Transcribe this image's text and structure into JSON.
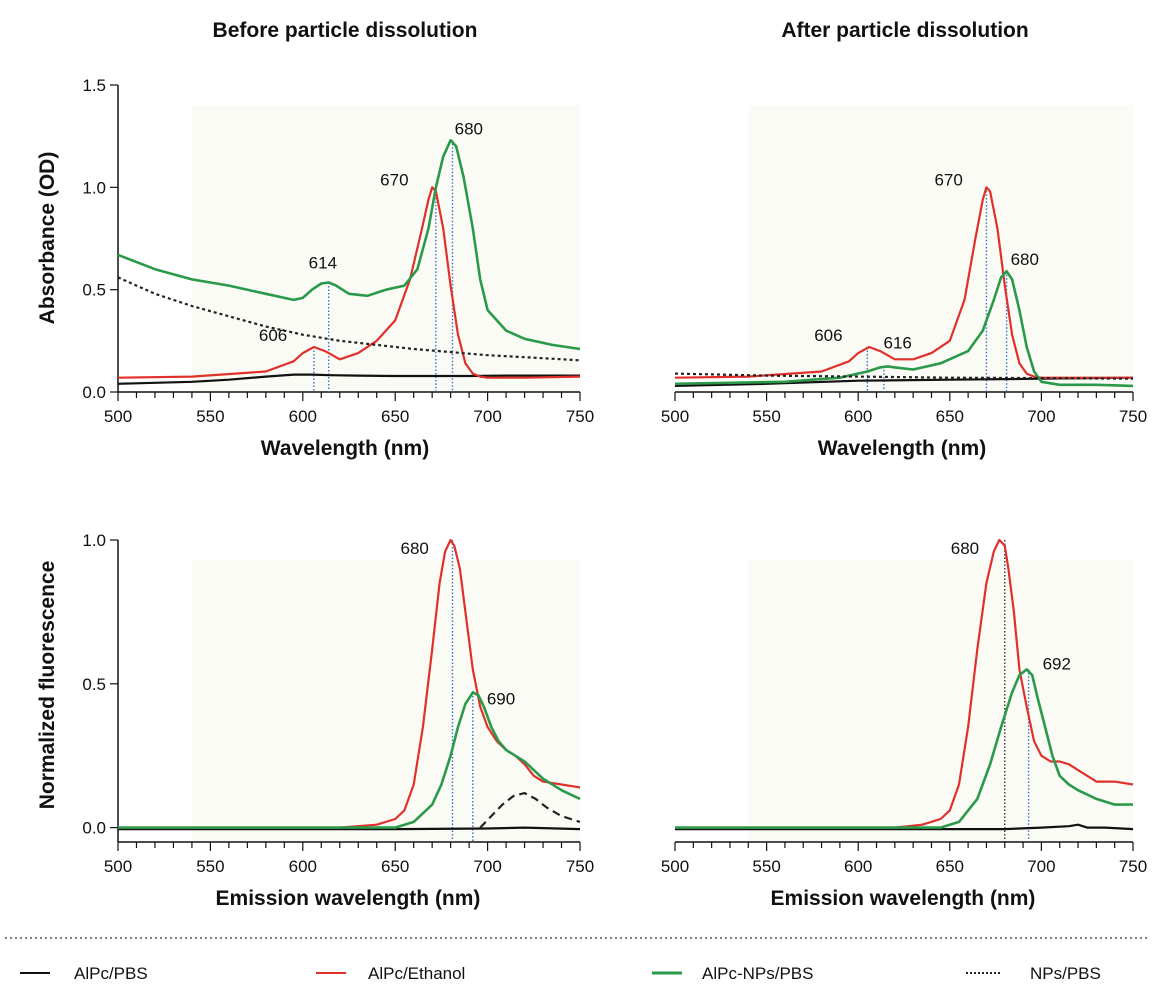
{
  "colors": {
    "AlPc/PBS": "#111111",
    "AlPc/Ethanol": "#e0302c",
    "AlPc-NPs/PBS": "#2a9a4a",
    "NPs/PBS": "#222222",
    "marker_blue": "#3a6fc8",
    "marker_dark": "#333333"
  },
  "legend": [
    {
      "label": "AlPc/PBS",
      "style": "solid-black"
    },
    {
      "label": "AlPc/Ethanol",
      "style": "solid-red"
    },
    {
      "label": "AlPc-NPs/PBS",
      "style": "solid-green"
    },
    {
      "label": "NPs/PBS",
      "style": "dotted-black"
    }
  ],
  "chart_data": [
    {
      "id": "abs-before",
      "type": "line",
      "title": "Before particle dissolution",
      "xlabel": "Wavelength (nm)",
      "ylabel": "Absorbance (OD)",
      "xlim": [
        500,
        750
      ],
      "ylim": [
        0,
        1.5
      ],
      "xticks": [
        "500",
        "550",
        "600",
        "650",
        "700",
        "750"
      ],
      "yticks": [
        "0.0",
        "0.5",
        "1.0",
        "1.5"
      ],
      "series": [
        {
          "name": "AlPc/PBS",
          "dash": "solid",
          "x": [
            500,
            520,
            540,
            560,
            580,
            595,
            605,
            615,
            630,
            650,
            670,
            690,
            710,
            730,
            750
          ],
          "y": [
            0.04,
            0.045,
            0.05,
            0.06,
            0.075,
            0.085,
            0.085,
            0.082,
            0.08,
            0.078,
            0.078,
            0.078,
            0.08,
            0.08,
            0.08
          ]
        },
        {
          "name": "AlPc/Ethanol",
          "dash": "solid",
          "x": [
            500,
            540,
            580,
            595,
            600,
            606,
            612,
            620,
            630,
            640,
            650,
            658,
            664,
            668,
            670,
            672,
            676,
            680,
            684,
            688,
            692,
            696,
            700,
            710,
            720,
            750
          ],
          "y": [
            0.07,
            0.075,
            0.1,
            0.15,
            0.19,
            0.22,
            0.2,
            0.16,
            0.19,
            0.25,
            0.35,
            0.55,
            0.78,
            0.94,
            1.0,
            0.98,
            0.8,
            0.52,
            0.28,
            0.14,
            0.09,
            0.075,
            0.07,
            0.07,
            0.07,
            0.075
          ]
        },
        {
          "name": "AlPc-NPs/PBS",
          "dash": "solid",
          "x": [
            500,
            520,
            540,
            560,
            580,
            595,
            600,
            605,
            610,
            614,
            618,
            625,
            635,
            645,
            655,
            662,
            668,
            672,
            676,
            680,
            683,
            687,
            692,
            696,
            700,
            710,
            720,
            735,
            750
          ],
          "y": [
            0.67,
            0.6,
            0.55,
            0.52,
            0.48,
            0.45,
            0.46,
            0.5,
            0.53,
            0.535,
            0.52,
            0.48,
            0.47,
            0.5,
            0.52,
            0.6,
            0.8,
            1.0,
            1.15,
            1.23,
            1.2,
            1.05,
            0.8,
            0.55,
            0.4,
            0.3,
            0.26,
            0.23,
            0.21
          ]
        },
        {
          "name": "NPs/PBS",
          "dash": "dotted",
          "x": [
            500,
            520,
            540,
            560,
            580,
            600,
            620,
            640,
            660,
            680,
            700,
            720,
            750
          ],
          "y": [
            0.56,
            0.48,
            0.42,
            0.37,
            0.32,
            0.28,
            0.25,
            0.23,
            0.21,
            0.195,
            0.18,
            0.17,
            0.155
          ]
        }
      ],
      "annotations": [
        {
          "text": "606",
          "x": 606,
          "y": 0.22,
          "dx": -55,
          "dy": -6
        },
        {
          "text": "614",
          "x": 614,
          "y": 0.535,
          "dx": -20,
          "dy": -14
        },
        {
          "text": "670",
          "x": 670,
          "y": 1.0,
          "dx": -52,
          "dy": -2
        },
        {
          "text": "680",
          "x": 680,
          "y": 1.23,
          "dx": 4,
          "dy": -6
        }
      ],
      "markers": [
        {
          "x": 606,
          "y": 0.22
        },
        {
          "x": 614,
          "y": 0.535
        },
        {
          "x": 672,
          "y": 1.0
        },
        {
          "x": 681,
          "y": 1.23
        }
      ]
    },
    {
      "id": "abs-after",
      "type": "line",
      "title": "After particle dissolution",
      "xlabel": "Wavelength (nm)",
      "ylabel": "",
      "xlim": [
        500,
        750
      ],
      "ylim": [
        0,
        1.5
      ],
      "xticks": [
        "500",
        "550",
        "600",
        "650",
        "700",
        "750"
      ],
      "yticks": [],
      "series": [
        {
          "name": "AlPc/PBS",
          "dash": "solid",
          "x": [
            500,
            550,
            600,
            650,
            700,
            750
          ],
          "y": [
            0.03,
            0.04,
            0.055,
            0.06,
            0.065,
            0.07
          ]
        },
        {
          "name": "AlPc/Ethanol",
          "dash": "solid",
          "x": [
            500,
            540,
            580,
            595,
            600,
            606,
            612,
            620,
            630,
            640,
            650,
            658,
            664,
            668,
            670,
            672,
            676,
            680,
            684,
            688,
            692,
            696,
            700,
            710,
            750
          ],
          "y": [
            0.07,
            0.075,
            0.1,
            0.15,
            0.19,
            0.22,
            0.2,
            0.16,
            0.16,
            0.19,
            0.25,
            0.45,
            0.75,
            0.94,
            1.0,
            0.98,
            0.8,
            0.52,
            0.28,
            0.14,
            0.09,
            0.075,
            0.07,
            0.07,
            0.07
          ]
        },
        {
          "name": "AlPc-NPs/PBS",
          "dash": "solid",
          "x": [
            500,
            560,
            590,
            605,
            612,
            616,
            620,
            630,
            645,
            660,
            668,
            674,
            678,
            681,
            684,
            688,
            692,
            696,
            700,
            710,
            730,
            750
          ],
          "y": [
            0.04,
            0.05,
            0.07,
            0.1,
            0.12,
            0.125,
            0.12,
            0.11,
            0.14,
            0.2,
            0.3,
            0.45,
            0.56,
            0.59,
            0.55,
            0.4,
            0.22,
            0.1,
            0.05,
            0.035,
            0.035,
            0.03
          ]
        },
        {
          "name": "NPs/PBS",
          "dash": "dotted",
          "x": [
            500,
            550,
            600,
            650,
            700,
            750
          ],
          "y": [
            0.09,
            0.08,
            0.075,
            0.07,
            0.068,
            0.065
          ]
        }
      ],
      "annotations": [
        {
          "text": "606",
          "x": 606,
          "y": 0.22,
          "dx": -55,
          "dy": -6
        },
        {
          "text": "616",
          "x": 616,
          "y": 0.125,
          "dx": -4,
          "dy": -18
        },
        {
          "text": "670",
          "x": 670,
          "y": 1.0,
          "dx": -52,
          "dy": -2
        },
        {
          "text": "680",
          "x": 681,
          "y": 0.59,
          "dx": 4,
          "dy": -6
        }
      ],
      "markers": [
        {
          "x": 605,
          "y": 0.22
        },
        {
          "x": 614,
          "y": 0.125
        },
        {
          "x": 670,
          "y": 1.0
        },
        {
          "x": 681,
          "y": 0.59
        }
      ]
    },
    {
      "id": "fl-before",
      "type": "line",
      "title": "",
      "xlabel": "Emission wavelength (nm)",
      "ylabel": "Normalized fluorescence",
      "xlim": [
        500,
        750
      ],
      "ylim": [
        -0.05,
        1.0
      ],
      "xticks": [
        "500",
        "550",
        "600",
        "650",
        "700",
        "750"
      ],
      "yticks": [
        "0.0",
        "0.5",
        "1.0"
      ],
      "series": [
        {
          "name": "AlPc/PBS",
          "dash": "solid",
          "x": [
            500,
            650,
            700,
            720,
            750
          ],
          "y": [
            -0.005,
            -0.005,
            -0.003,
            0.0,
            -0.005
          ]
        },
        {
          "name": "AlPc/Ethanol",
          "dash": "solid",
          "x": [
            500,
            620,
            640,
            650,
            655,
            660,
            665,
            670,
            674,
            677,
            680,
            682,
            685,
            688,
            692,
            696,
            700,
            705,
            710,
            715,
            720,
            725,
            730,
            740,
            750
          ],
          "y": [
            0.0,
            0.0,
            0.01,
            0.03,
            0.06,
            0.15,
            0.35,
            0.62,
            0.85,
            0.96,
            1.0,
            0.98,
            0.9,
            0.75,
            0.55,
            0.42,
            0.35,
            0.3,
            0.27,
            0.25,
            0.22,
            0.18,
            0.16,
            0.15,
            0.14
          ]
        },
        {
          "name": "AlPc-NPs/PBS",
          "dash": "solid",
          "x": [
            500,
            650,
            660,
            670,
            675,
            680,
            684,
            688,
            692,
            695,
            698,
            702,
            706,
            710,
            715,
            720,
            725,
            730,
            740,
            750
          ],
          "y": [
            0.0,
            0.0,
            0.02,
            0.08,
            0.15,
            0.25,
            0.35,
            0.43,
            0.47,
            0.46,
            0.42,
            0.35,
            0.3,
            0.27,
            0.25,
            0.23,
            0.2,
            0.17,
            0.13,
            0.1
          ]
        },
        {
          "name": "NPs/PBS",
          "dash": "dashed",
          "x": [
            696,
            702,
            708,
            714,
            720,
            726,
            732,
            740,
            750
          ],
          "y": [
            0.0,
            0.04,
            0.08,
            0.11,
            0.12,
            0.1,
            0.07,
            0.04,
            0.02
          ]
        }
      ],
      "annotations": [
        {
          "text": "680",
          "x": 681,
          "y": 1.0,
          "dx": -52,
          "dy": 14
        },
        {
          "text": "690",
          "x": 692,
          "y": 0.47,
          "dx": 14,
          "dy": 12
        }
      ],
      "markers": [
        {
          "x": 681,
          "y": 1.0
        },
        {
          "x": 692,
          "y": 0.47
        }
      ]
    },
    {
      "id": "fl-after",
      "type": "line",
      "title": "",
      "xlabel": "Emission wavelength (nm)",
      "ylabel": "",
      "xlim": [
        500,
        750
      ],
      "ylim": [
        -0.05,
        1.0
      ],
      "xticks": [
        "500",
        "550",
        "600",
        "650",
        "700",
        "750"
      ],
      "yticks": [],
      "series": [
        {
          "name": "AlPc/PBS",
          "dash": "solid",
          "x": [
            500,
            680,
            700,
            715,
            720,
            725,
            735,
            750
          ],
          "y": [
            -0.005,
            -0.005,
            0.0,
            0.005,
            0.01,
            0.0,
            0.0,
            -0.005
          ]
        },
        {
          "name": "AlPc/Ethanol",
          "dash": "solid",
          "x": [
            500,
            620,
            635,
            645,
            650,
            655,
            660,
            665,
            670,
            674,
            677,
            680,
            682,
            685,
            688,
            692,
            696,
            700,
            705,
            710,
            715,
            720,
            725,
            730,
            740,
            750
          ],
          "y": [
            0.0,
            0.0,
            0.01,
            0.03,
            0.06,
            0.15,
            0.35,
            0.62,
            0.85,
            0.96,
            1.0,
            0.98,
            0.9,
            0.75,
            0.55,
            0.42,
            0.3,
            0.25,
            0.23,
            0.23,
            0.22,
            0.2,
            0.18,
            0.16,
            0.16,
            0.15
          ]
        },
        {
          "name": "AlPc-NPs/PBS",
          "dash": "solid",
          "x": [
            500,
            645,
            655,
            665,
            672,
            678,
            684,
            688,
            692,
            695,
            698,
            702,
            706,
            710,
            715,
            720,
            730,
            740,
            750
          ],
          "y": [
            0.0,
            0.0,
            0.02,
            0.1,
            0.22,
            0.35,
            0.47,
            0.53,
            0.55,
            0.53,
            0.45,
            0.35,
            0.25,
            0.18,
            0.15,
            0.13,
            0.1,
            0.08,
            0.08
          ]
        }
      ],
      "annotations": [
        {
          "text": "680",
          "x": 680,
          "y": 1.0,
          "dx": -54,
          "dy": 14
        },
        {
          "text": "692",
          "x": 693,
          "y": 0.55,
          "dx": 14,
          "dy": 0
        }
      ],
      "markers": [
        {
          "x": 680,
          "y": 1.0,
          "color": "dark"
        },
        {
          "x": 693,
          "y": 0.55
        }
      ]
    }
  ]
}
